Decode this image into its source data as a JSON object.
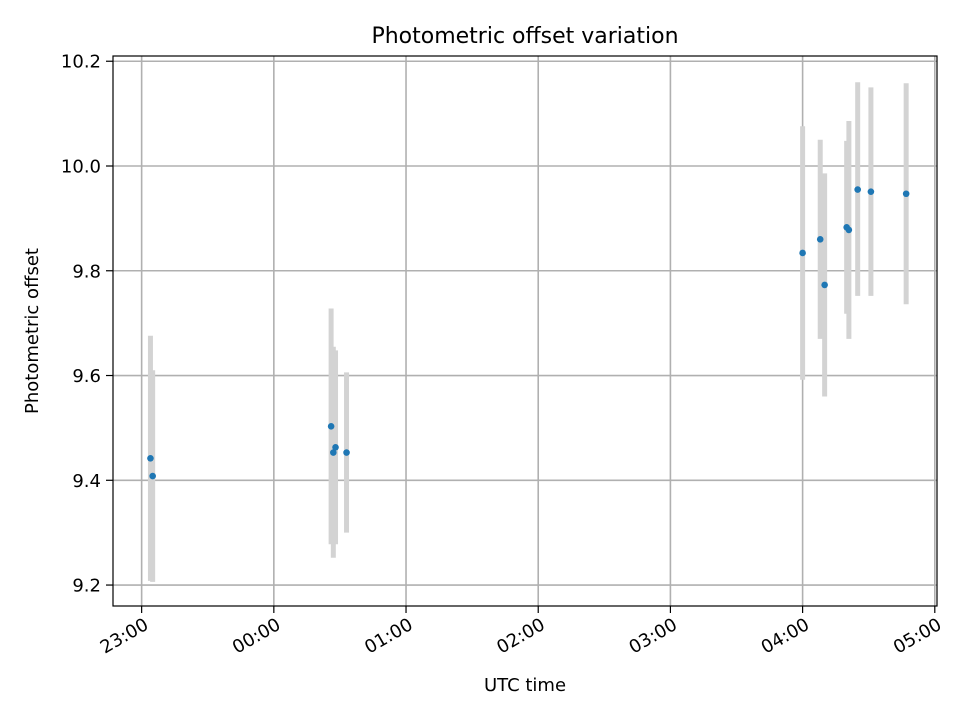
{
  "chart_data": {
    "type": "scatter",
    "title": "Photometric offset variation",
    "xlabel": "UTC time",
    "ylabel": "Photometric offset",
    "x_axis_type": "time",
    "xlim": [
      "22:47",
      "05:01"
    ],
    "ylim": [
      9.16,
      10.21
    ],
    "x_ticks": [
      "23:00",
      "00:00",
      "01:00",
      "02:00",
      "03:00",
      "04:00",
      "05:00"
    ],
    "y_ticks": [
      9.2,
      9.4,
      9.6,
      9.8,
      10.0,
      10.2
    ],
    "y_tick_labels": [
      "9.2",
      "9.4",
      "9.6",
      "9.8",
      "10.0",
      "10.2"
    ],
    "grid": true,
    "colors": {
      "marker": "#1f77b4",
      "errorbar": "#d3d3d3",
      "grid": "#b0b0b0"
    },
    "series": [
      {
        "points": [
          {
            "x": "23:04",
            "y": 9.442,
            "ymin": 9.208,
            "ymax": 9.676
          },
          {
            "x": "23:05",
            "y": 9.408,
            "ymin": 9.206,
            "ymax": 9.61
          },
          {
            "x": "00:26",
            "y": 9.503,
            "ymin": 9.278,
            "ymax": 9.728
          },
          {
            "x": "00:27",
            "y": 9.453,
            "ymin": 9.252,
            "ymax": 9.655
          },
          {
            "x": "00:28",
            "y": 9.463,
            "ymin": 9.278,
            "ymax": 9.648
          },
          {
            "x": "00:33",
            "y": 9.453,
            "ymin": 9.3,
            "ymax": 9.606
          },
          {
            "x": "04:00",
            "y": 9.834,
            "ymin": 9.592,
            "ymax": 10.076
          },
          {
            "x": "04:08",
            "y": 9.86,
            "ymin": 9.67,
            "ymax": 10.05
          },
          {
            "x": "04:10",
            "y": 9.773,
            "ymin": 9.56,
            "ymax": 9.986
          },
          {
            "x": "04:20",
            "y": 9.883,
            "ymin": 9.718,
            "ymax": 10.048
          },
          {
            "x": "04:21",
            "y": 9.878,
            "ymin": 9.67,
            "ymax": 10.086
          },
          {
            "x": "04:25",
            "y": 9.955,
            "ymin": 9.752,
            "ymax": 10.16
          },
          {
            "x": "04:31",
            "y": 9.951,
            "ymin": 9.752,
            "ymax": 10.15
          },
          {
            "x": "04:47",
            "y": 9.947,
            "ymin": 9.736,
            "ymax": 10.158
          }
        ]
      }
    ]
  }
}
